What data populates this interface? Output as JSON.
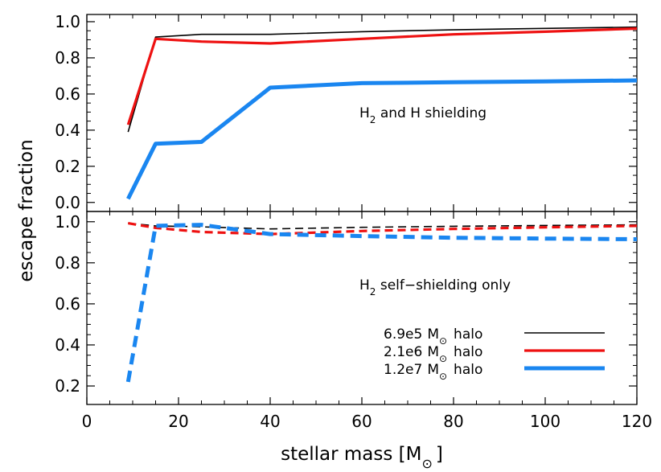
{
  "chart_data": {
    "type": "line",
    "xlabel": "stellar mass [M",
    "xlabel_unit_symbol": "⊙",
    "xlabel_close": "]",
    "ylabel": "escape fraction",
    "xlim": [
      0,
      120
    ],
    "x_ticks": [
      "0",
      "20",
      "40",
      "60",
      "80",
      "100",
      "120"
    ],
    "grid": false,
    "legend_placement": "lower-right of bottom panel",
    "legend": [
      {
        "value": "6.9e5",
        "unit": "M",
        "symbol": "⊙",
        "suffix": "halo",
        "color": "#000000",
        "style": "thin solid"
      },
      {
        "value": "2.1e6",
        "unit": "M",
        "symbol": "⊙",
        "suffix": "halo",
        "color": "#ee1111",
        "style": "medium solid"
      },
      {
        "value": "1.2e7",
        "unit": "M",
        "symbol": "⊙",
        "suffix": "halo",
        "color": "#1a86f0",
        "style": "thick solid"
      }
    ],
    "panels": [
      {
        "name": "top",
        "annotation": {
          "pre": "H",
          "sub": "2",
          "post": " and H shielding"
        },
        "ylim": [
          -0.05,
          1.04
        ],
        "y_ticks": [
          "0.0",
          "0.2",
          "0.4",
          "0.6",
          "0.8",
          "1.0"
        ],
        "line_style": "solid",
        "series": [
          {
            "color": "#000000",
            "x": [
              9,
              15,
              25,
              40,
              60,
              80,
              100,
              120
            ],
            "y": [
              0.39,
              0.915,
              0.93,
              0.93,
              0.945,
              0.955,
              0.963,
              0.97
            ]
          },
          {
            "color": "#ee1111",
            "x": [
              9,
              15,
              25,
              40,
              60,
              80,
              100,
              120
            ],
            "y": [
              0.43,
              0.905,
              0.89,
              0.88,
              0.905,
              0.93,
              0.945,
              0.962
            ]
          },
          {
            "color": "#1a86f0",
            "x": [
              9,
              15,
              25,
              40,
              60,
              80,
              100,
              120
            ],
            "y": [
              0.02,
              0.325,
              0.335,
              0.635,
              0.66,
              0.665,
              0.67,
              0.675
            ]
          }
        ]
      },
      {
        "name": "bottom",
        "annotation": {
          "pre": "H",
          "sub": "2",
          "post": " self−shielding only"
        },
        "ylim": [
          0.11,
          1.05
        ],
        "y_ticks": [
          "0.2",
          "0.4",
          "0.6",
          "0.8",
          "1.0"
        ],
        "line_style": "dashed",
        "series": [
          {
            "color": "#000000",
            "x": [
              9,
              15,
              25,
              40,
              60,
              80,
              100,
              120
            ],
            "y": [
              0.993,
              0.98,
              0.975,
              0.965,
              0.973,
              0.978,
              0.982,
              0.985
            ]
          },
          {
            "color": "#ee1111",
            "x": [
              9,
              15,
              25,
              40,
              60,
              80,
              100,
              120
            ],
            "y": [
              0.993,
              0.97,
              0.95,
              0.94,
              0.955,
              0.965,
              0.973,
              0.98
            ]
          },
          {
            "color": "#1a86f0",
            "x": [
              9,
              15,
              25,
              40,
              60,
              80,
              100,
              120
            ],
            "y": [
              0.22,
              0.98,
              0.985,
              0.94,
              0.93,
              0.922,
              0.918,
              0.915
            ]
          }
        ]
      }
    ]
  }
}
